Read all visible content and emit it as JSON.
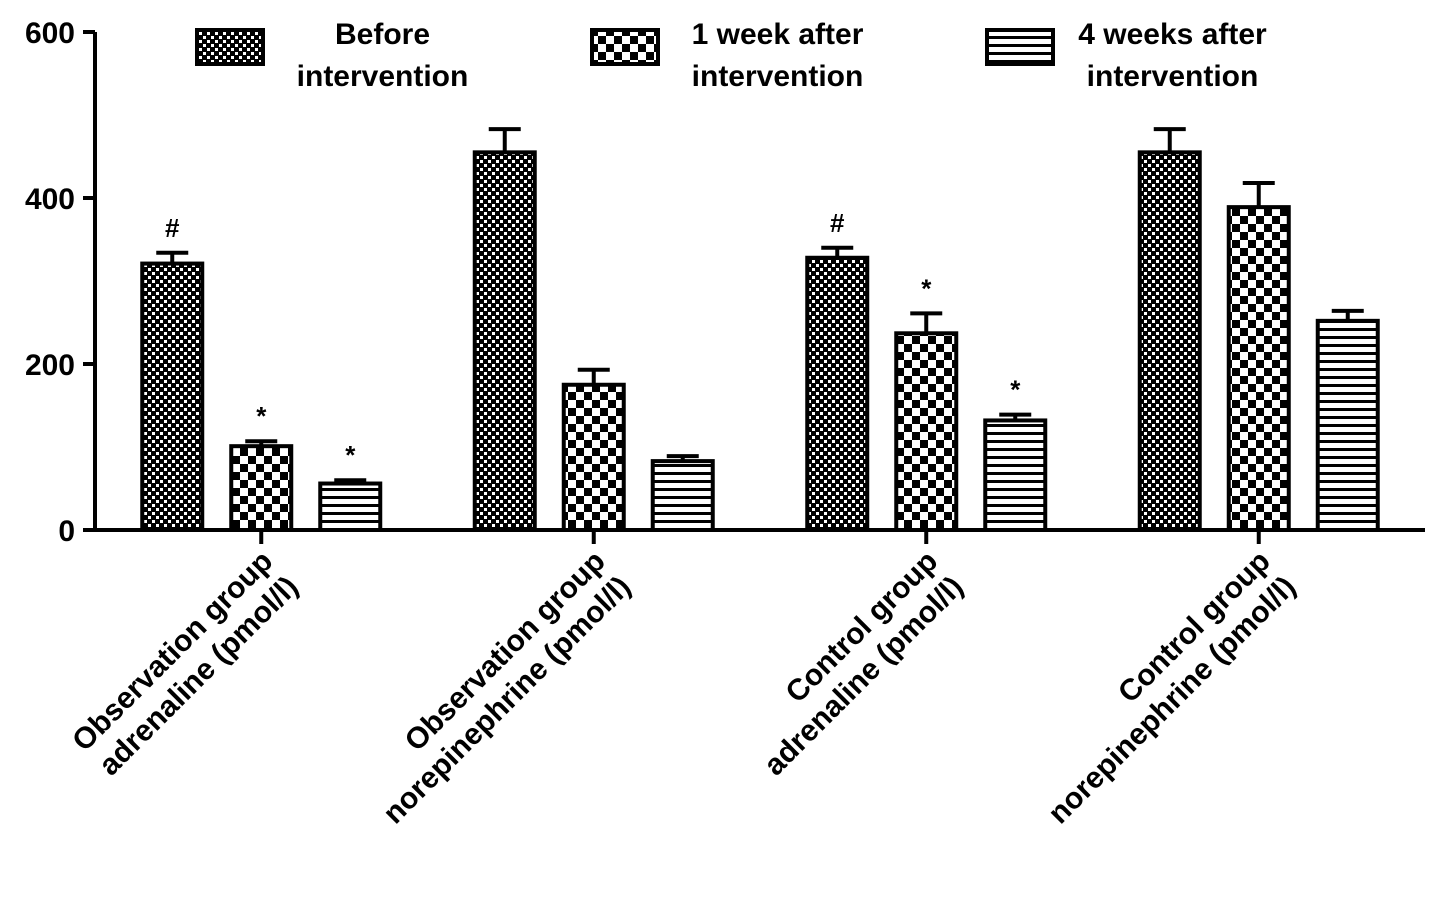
{
  "chart_data": {
    "type": "bar",
    "categories": [
      [
        "Observation group",
        "adrenaline (pmol/l)"
      ],
      [
        "Observation group",
        "norepinephrine (pmol/l)"
      ],
      [
        "Control group",
        "adrenaline (pmol/l)"
      ],
      [
        "Control group",
        "norepinephrine (pmol/l)"
      ]
    ],
    "series": [
      {
        "name": "Before intervention",
        "color": "#000000",
        "pattern": "fine-checker",
        "values": [
          321,
          455,
          328,
          455
        ],
        "errors": [
          13,
          28,
          12,
          28
        ],
        "annotations": [
          "#",
          null,
          "#",
          null
        ]
      },
      {
        "name": "1 week after intervention",
        "color": "#000000",
        "pattern": "checker",
        "values": [
          101,
          175,
          237,
          389
        ],
        "errors": [
          6,
          18,
          24,
          29
        ],
        "annotations": [
          "*",
          null,
          "*",
          null
        ]
      },
      {
        "name": "4 weeks after intervention",
        "color": "#000000",
        "pattern": "stripes",
        "values": [
          56,
          83,
          132,
          252
        ],
        "errors": [
          4,
          6,
          7,
          12
        ],
        "annotations": [
          "*",
          null,
          "*",
          null
        ]
      }
    ],
    "ylim": [
      0,
      600
    ],
    "yticks": [
      0,
      200,
      400,
      600
    ]
  }
}
